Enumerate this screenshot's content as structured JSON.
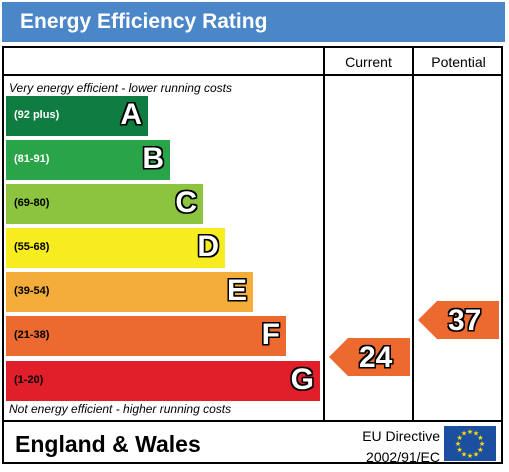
{
  "header": {
    "title": "Energy Efficiency Rating"
  },
  "columns": {
    "current": "Current",
    "potential": "Potential"
  },
  "notes": {
    "top": "Very energy efficient - lower running costs",
    "bottom": "Not energy efficient - higher running costs"
  },
  "chart_data": {
    "type": "bar",
    "title": "Energy Efficiency Rating",
    "bands": [
      {
        "letter": "A",
        "range": "(92 plus)",
        "color": "#0f7d42"
      },
      {
        "letter": "B",
        "range": "(81-91)",
        "color": "#2aa449"
      },
      {
        "letter": "C",
        "range": "(69-80)",
        "color": "#8cc43f"
      },
      {
        "letter": "D",
        "range": "(55-68)",
        "color": "#f6ec20"
      },
      {
        "letter": "E",
        "range": "(39-54)",
        "color": "#f4ac3a"
      },
      {
        "letter": "F",
        "range": "(21-38)",
        "color": "#ec6a30"
      },
      {
        "letter": "G",
        "range": "(1-20)",
        "color": "#e11f2b"
      }
    ],
    "current": {
      "value": 24,
      "band": "F",
      "color": "#ec6a30"
    },
    "potential": {
      "value": 37,
      "band": "F",
      "color": "#ec6a30"
    }
  },
  "footer": {
    "country": "England & Wales",
    "directive_line1": "EU Directive",
    "directive_line2": "2002/91/EC"
  }
}
